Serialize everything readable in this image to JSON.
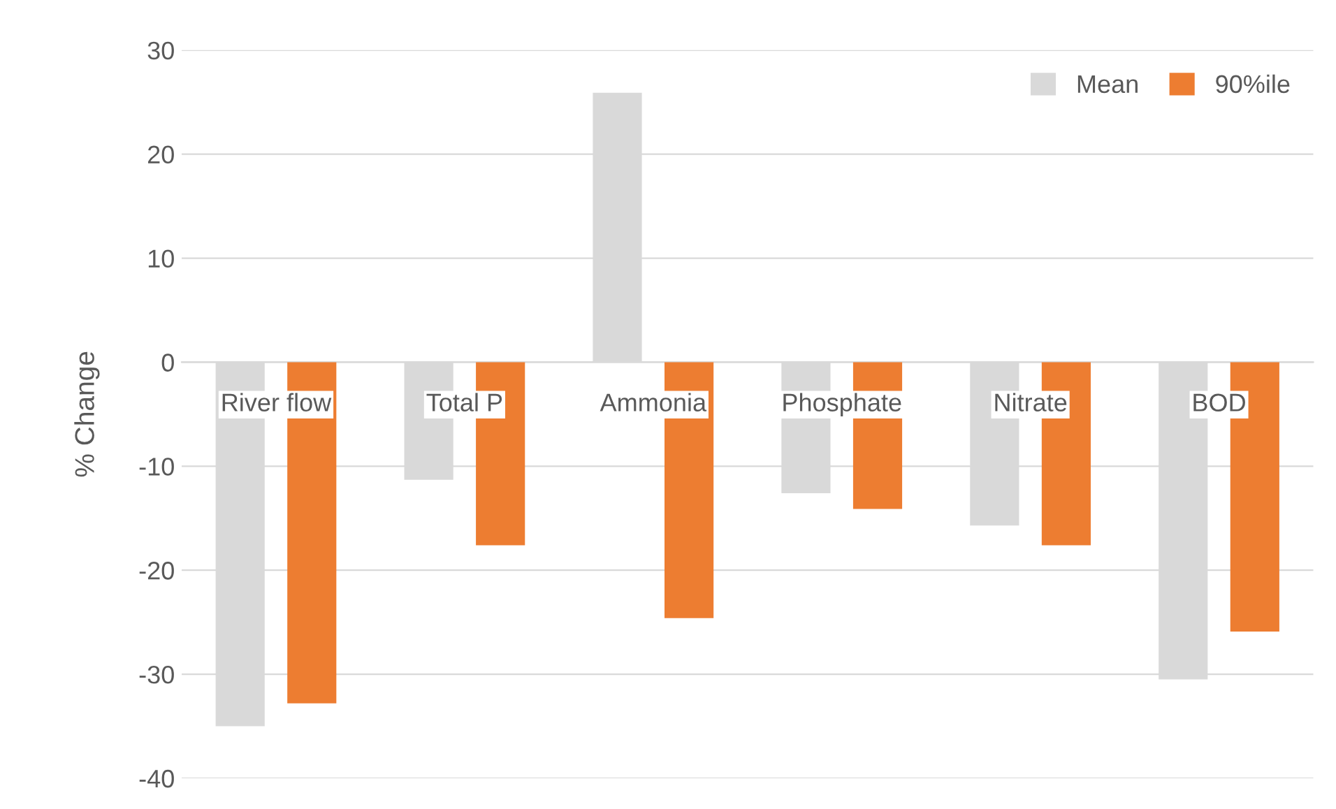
{
  "chart_data": {
    "type": "bar",
    "ylabel": "% Change",
    "categories": [
      "River flow",
      "Total P",
      "Ammonia",
      "Phosphate",
      "Nitrate",
      "BOD"
    ],
    "series": [
      {
        "name": "Mean",
        "color": "#d9d9d9",
        "values": [
          -35,
          -11.3,
          25.9,
          -12.6,
          -15.7,
          -30.5
        ]
      },
      {
        "name": "90%ile",
        "color": "#ed7d31",
        "values": [
          -32.8,
          -17.6,
          -24.6,
          -14.1,
          -17.6,
          -25.9
        ]
      }
    ],
    "ylim": [
      -40,
      30
    ],
    "yticks": [
      -40,
      -30,
      -20,
      -10,
      0,
      10,
      20,
      30
    ],
    "grid": "y",
    "legend": "top right"
  }
}
